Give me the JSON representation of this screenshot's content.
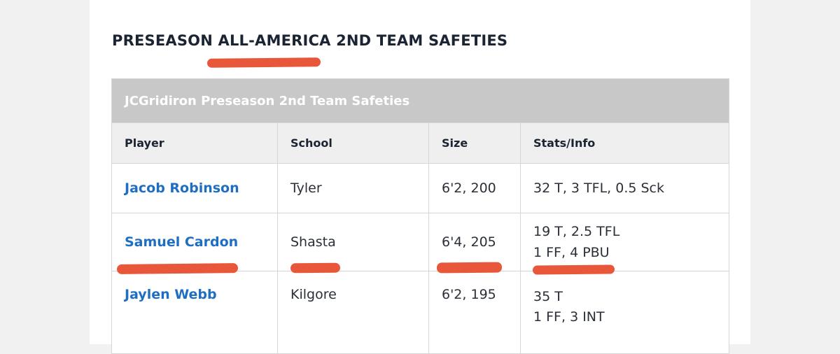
{
  "heading": {
    "part1": "PRESEASON ",
    "part2": "ALL-AMERICA",
    "part3": " 2ND TEAM SAFETIES"
  },
  "table": {
    "caption": "JCGridiron Preseason 2nd Team Safeties",
    "columns": [
      "Player",
      "School",
      "Size",
      "Stats/Info"
    ],
    "rows": [
      {
        "player": "Jacob Robinson",
        "school": "Tyler",
        "size": "6'2, 200",
        "stats": [
          "32 T, 3 TFL, 0.5 Sck"
        ]
      },
      {
        "player": "Samuel Cardon",
        "school": "Shasta",
        "size": "6'4, 205",
        "stats": [
          "19 T, 2.5 TFL",
          "1 FF, 4 PBU"
        ]
      },
      {
        "player": "Jaylen Webb",
        "school": "Kilgore",
        "size": "6'2, 195",
        "stats": [
          "35 T",
          "1 FF, 3 INT"
        ]
      }
    ]
  },
  "colors": {
    "highlight": "#e9573a",
    "link": "#1e6fc2",
    "caption_bg": "#c8c8c8",
    "header_bg": "#efefef"
  }
}
